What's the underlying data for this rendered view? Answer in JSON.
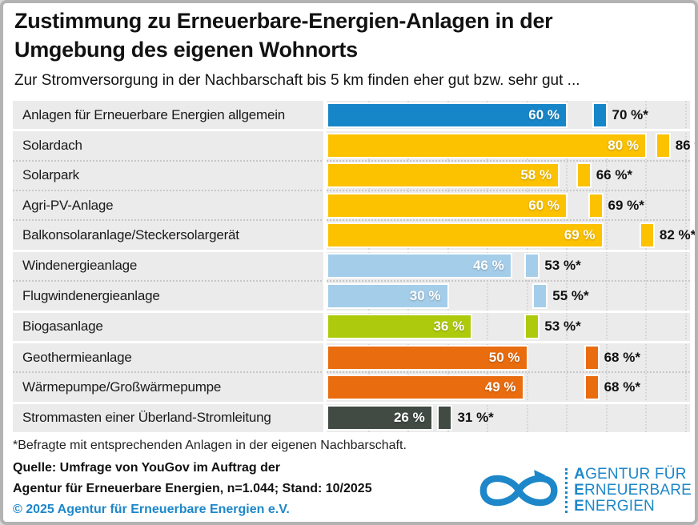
{
  "chart_data": {
    "type": "bar",
    "orientation": "horizontal",
    "title": "Zustimmung zu Erneuerbare-Energien-Anlagen in der Umgebung des eigenen Wohnorts",
    "subtitle": "Zur Stromversorgung in der Nachbarschaft bis 5 km finden eher gut bzw. sehr gut ...",
    "unit": "%",
    "xlim": [
      0,
      92
    ],
    "gridline_interval": 10,
    "gridline_max": 90,
    "value_suffix": " %",
    "note_suffix": " %*",
    "footnote": "*Befragte mit entsprechenden Anlagen in der eigenen Nachbarschaft.",
    "rows": [
      {
        "label": "Anlagen für Erneuerbare Energien allgemein",
        "value": 60,
        "value_note": 70,
        "color": "#1786c8",
        "group_end": true
      },
      {
        "label": "Solardach",
        "value": 80,
        "value_note": 86,
        "color": "#fcc200",
        "group_end": false
      },
      {
        "label": "Solarpark",
        "value": 58,
        "value_note": 66,
        "color": "#fcc200",
        "group_end": false
      },
      {
        "label": "Agri-PV-Anlage",
        "value": 60,
        "value_note": 69,
        "color": "#fcc200",
        "group_end": false
      },
      {
        "label": "Balkonsolaranlage/Steckersolargerät",
        "value": 69,
        "value_note": 82,
        "color": "#fcc200",
        "group_end": true
      },
      {
        "label": "Windenergieanlage",
        "value": 46,
        "value_note": 53,
        "color": "#a4cde9",
        "group_end": false
      },
      {
        "label": "Flugwindenergieanlage",
        "value": 30,
        "value_note": 55,
        "color": "#a4cde9",
        "group_end": true
      },
      {
        "label": "Biogasanlage",
        "value": 36,
        "value_note": 53,
        "color": "#aeca0c",
        "group_end": true
      },
      {
        "label": "Geothermieanlage",
        "value": 50,
        "value_note": 68,
        "color": "#e96c0f",
        "group_end": false
      },
      {
        "label": "Wärmepumpe/Großwärmepumpe",
        "value": 49,
        "value_note": 68,
        "color": "#e96c0f",
        "group_end": true
      },
      {
        "label": "Strommasten einer Überland-Stromleitung",
        "value": 26,
        "value_note": 31,
        "color": "#414a43",
        "group_end": false
      }
    ]
  },
  "footer": {
    "source_line1": "Quelle: Umfrage von YouGov im Auftrag der",
    "source_line2": "Agentur für Erneuerbare Energien, n=1.044; Stand: 10/2025",
    "copyright": "© 2025 Agentur für Erneuerbare Energien e.V.",
    "logo": {
      "lines": [
        "AGENTUR FÜR",
        "ERNEUERBARE",
        "ENERGIEN"
      ],
      "icon": "infinity-arrow-icon"
    }
  },
  "palette": {
    "brand_blue": "#1d87c9",
    "bar_blue": "#1786c8",
    "bar_yellow": "#fcc200",
    "bar_light_blue": "#a4cde9",
    "bar_green": "#aeca0c",
    "bar_orange": "#e96c0f",
    "bar_dark": "#414a43",
    "panel_background": "#ebebeb"
  }
}
